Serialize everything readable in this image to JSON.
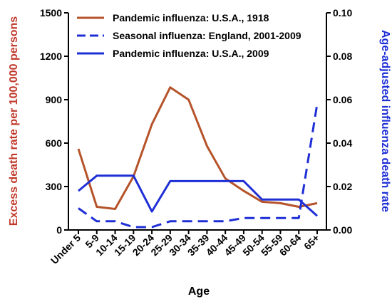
{
  "chart_data": {
    "type": "line",
    "categories": [
      "Under 5",
      "5-9",
      "10-14",
      "15-19",
      "20-24",
      "25-29",
      "30-34",
      "35-39",
      "40-44",
      "45-49",
      "50-54",
      "55-59",
      "60-64",
      "65+"
    ],
    "xlabel": "Age",
    "ylabel_left": "Excess death rate per 100,000 persons",
    "ylabel_right": "Age-adjusted influenza death rate",
    "ylim_left": [
      0,
      1500
    ],
    "ylim_right": [
      0,
      0.1
    ],
    "yticks_left": [
      "0",
      "300",
      "600",
      "900",
      "1200",
      "1500"
    ],
    "yticks_right": [
      "0.00",
      "0.02",
      "0.04",
      "0.06",
      "0.08",
      "0.10"
    ],
    "grid": false,
    "legend_position": "top-center",
    "colors": {
      "left_axis": "#c0392b",
      "right_axis": "#1f2fd6",
      "series_1918": "#b5532a",
      "series_blue": "#1f2fd6"
    },
    "series": [
      {
        "name": "Pandemic influenza: U.S.A., 1918",
        "axis": "left",
        "style": "solid",
        "color": "#b5532a",
        "values": [
          560,
          160,
          145,
          370,
          730,
          985,
          900,
          580,
          355,
          270,
          195,
          185,
          160,
          185
        ]
      },
      {
        "name": "Seasonal influenza: England, 2001-2009",
        "axis": "right",
        "style": "dashed",
        "color": "#1f2fd6",
        "values": [
          0.01,
          0.004,
          0.004,
          0.0013,
          0.0013,
          0.004,
          0.004,
          0.004,
          0.004,
          0.0055,
          0.0055,
          0.0055,
          0.0055,
          0.058
        ]
      },
      {
        "name": "Pandemic influenza: U.S.A., 2009",
        "axis": "right",
        "style": "solid",
        "color": "#1f2fd6",
        "values": [
          0.018,
          0.025,
          0.025,
          0.025,
          0.0085,
          0.0225,
          0.0225,
          0.0225,
          0.0225,
          0.0225,
          0.014,
          0.014,
          0.014,
          0.0065
        ]
      }
    ]
  }
}
